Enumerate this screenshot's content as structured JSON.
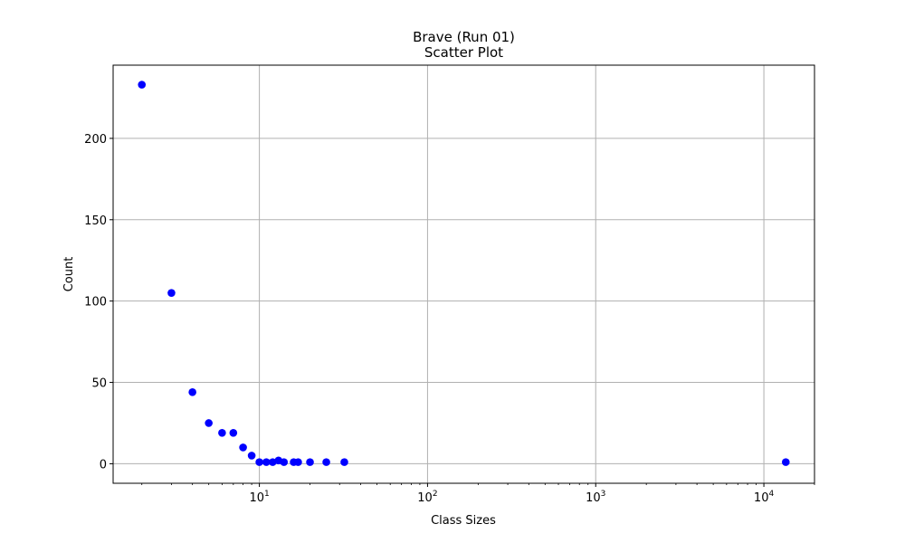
{
  "chart_data": {
    "type": "scatter",
    "title": "Brave (Run 01)",
    "subtitle": "Scatter Plot",
    "xlabel": "Class Sizes",
    "ylabel": "Count",
    "xscale": "log",
    "xlim": [
      1.35,
      20000
    ],
    "ylim": [
      -12,
      245
    ],
    "grid": true,
    "marker_color": "#0000ff",
    "x_ticks": [
      {
        "value": 10,
        "base": "10",
        "exp": "1"
      },
      {
        "value": 100,
        "base": "10",
        "exp": "2"
      },
      {
        "value": 1000,
        "base": "10",
        "exp": "3"
      },
      {
        "value": 10000,
        "base": "10",
        "exp": "4"
      }
    ],
    "y_ticks": [
      {
        "value": 0,
        "label": "0"
      },
      {
        "value": 50,
        "label": "50"
      },
      {
        "value": 100,
        "label": "100"
      },
      {
        "value": 150,
        "label": "150"
      },
      {
        "value": 200,
        "label": "200"
      }
    ],
    "points": [
      {
        "x": 2,
        "y": 233
      },
      {
        "x": 3,
        "y": 105
      },
      {
        "x": 4,
        "y": 44
      },
      {
        "x": 5,
        "y": 25
      },
      {
        "x": 6,
        "y": 19
      },
      {
        "x": 7,
        "y": 19
      },
      {
        "x": 8,
        "y": 10
      },
      {
        "x": 9,
        "y": 5
      },
      {
        "x": 10,
        "y": 1
      },
      {
        "x": 11,
        "y": 1
      },
      {
        "x": 12,
        "y": 1
      },
      {
        "x": 13,
        "y": 2
      },
      {
        "x": 14,
        "y": 1
      },
      {
        "x": 16,
        "y": 1
      },
      {
        "x": 17,
        "y": 1
      },
      {
        "x": 20,
        "y": 1
      },
      {
        "x": 25,
        "y": 1
      },
      {
        "x": 32,
        "y": 1
      },
      {
        "x": 13500,
        "y": 1
      }
    ]
  }
}
